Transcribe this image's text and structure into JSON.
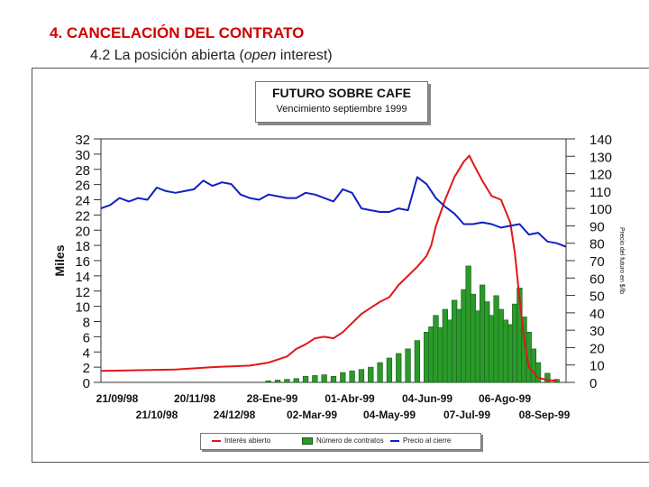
{
  "slide": {
    "title": "4. CANCELACIÓN DEL CONTRATO",
    "subtitle_prefix": "4.2 La posición abierta (",
    "subtitle_italic": "open",
    "subtitle_suffix": " interest)"
  },
  "colors": {
    "open_interest": "#e01818",
    "volume_fill": "#2a9a2a",
    "price": "#1020c0",
    "title_red": "#d00000"
  },
  "chart_data": {
    "type": "line",
    "title": "FUTURO SOBRE CAFE",
    "subtitle": "Vencimiento septiembre 1999",
    "ylabel_left": "Miles",
    "ylabel_right": "Precio del futuro en $/lb",
    "ylim_left": [
      0,
      32
    ],
    "ylim_right": [
      0,
      140
    ],
    "yticks_left": [
      "32",
      "30",
      "28",
      "26",
      "24",
      "22",
      "20",
      "18",
      "16",
      "14",
      "12",
      "10",
      "8",
      "6",
      "4",
      "2",
      "0"
    ],
    "yticks_right": [
      "140",
      "130",
      "120",
      "110",
      "100",
      "90",
      "80",
      "70",
      "60",
      "50",
      "40",
      "30",
      "20",
      "10",
      "0"
    ],
    "xticks_top": [
      "21/09/98",
      "20/11/98",
      "28-Ene-99",
      "01-Abr-99",
      "04-Jun-99",
      "06-Ago-99"
    ],
    "xticks_bottom": [
      "21/10/98",
      "24/12/98",
      "02-Mar-99",
      "04-May-99",
      "07-Jul-99",
      "08-Sep-99"
    ],
    "x_range": [
      0,
      50
    ],
    "legend": [
      "Interés abierto",
      "Número de contratos",
      "Precio al cierre"
    ],
    "series": [
      {
        "name": "Interés abierto",
        "axis": "left",
        "points": [
          [
            0,
            1.5
          ],
          [
            4,
            1.6
          ],
          [
            8,
            1.7
          ],
          [
            12,
            2.0
          ],
          [
            16,
            2.2
          ],
          [
            18,
            2.6
          ],
          [
            20,
            3.4
          ],
          [
            21,
            4.4
          ],
          [
            22,
            5.0
          ],
          [
            23,
            5.8
          ],
          [
            24,
            6.0
          ],
          [
            25,
            5.8
          ],
          [
            26,
            6.6
          ],
          [
            27,
            7.8
          ],
          [
            28,
            9.0
          ],
          [
            29,
            9.8
          ],
          [
            30,
            10.6
          ],
          [
            31,
            11.2
          ],
          [
            32,
            12.8
          ],
          [
            33,
            14.0
          ],
          [
            34,
            15.2
          ],
          [
            35,
            16.6
          ],
          [
            35.5,
            18.0
          ],
          [
            36,
            20.5
          ],
          [
            37,
            24.0
          ],
          [
            38,
            27.0
          ],
          [
            39,
            29.0
          ],
          [
            39.6,
            29.8
          ],
          [
            40,
            28.8
          ],
          [
            41,
            26.5
          ],
          [
            42,
            24.5
          ],
          [
            43,
            24.0
          ],
          [
            44,
            21.0
          ],
          [
            44.5,
            17.0
          ],
          [
            45,
            11.0
          ],
          [
            45.5,
            5.5
          ],
          [
            46,
            2.0
          ],
          [
            47,
            0.6
          ],
          [
            48,
            0.3
          ],
          [
            49,
            0.2
          ]
        ]
      },
      {
        "name": "Número de contratos",
        "axis": "left",
        "points": [
          [
            18,
            0.2
          ],
          [
            19,
            0.3
          ],
          [
            20,
            0.4
          ],
          [
            21,
            0.5
          ],
          [
            22,
            0.8
          ],
          [
            23,
            0.9
          ],
          [
            24,
            1.0
          ],
          [
            25,
            0.8
          ],
          [
            26,
            1.3
          ],
          [
            27,
            1.5
          ],
          [
            28,
            1.7
          ],
          [
            29,
            2.0
          ],
          [
            30,
            2.6
          ],
          [
            31,
            3.2
          ],
          [
            32,
            3.8
          ],
          [
            33,
            4.4
          ],
          [
            34,
            5.5
          ],
          [
            35,
            6.6
          ],
          [
            35.5,
            7.3
          ],
          [
            36,
            8.8
          ],
          [
            36.5,
            7.2
          ],
          [
            37,
            9.6
          ],
          [
            37.5,
            8.2
          ],
          [
            38,
            10.8
          ],
          [
            38.5,
            9.6
          ],
          [
            39,
            12.2
          ],
          [
            39.5,
            15.3
          ],
          [
            40,
            11.6
          ],
          [
            40.5,
            9.4
          ],
          [
            41,
            12.8
          ],
          [
            41.5,
            10.6
          ],
          [
            42,
            8.8
          ],
          [
            42.5,
            11.4
          ],
          [
            43,
            9.6
          ],
          [
            43.5,
            8.2
          ],
          [
            44,
            7.6
          ],
          [
            44.5,
            10.3
          ],
          [
            45,
            12.4
          ],
          [
            45.5,
            8.6
          ],
          [
            46,
            6.6
          ],
          [
            46.5,
            4.4
          ],
          [
            47,
            2.6
          ],
          [
            48,
            1.2
          ],
          [
            49,
            0.4
          ]
        ]
      },
      {
        "name": "Precio al cierre",
        "axis": "right",
        "points": [
          [
            0,
            100
          ],
          [
            1,
            102
          ],
          [
            2,
            106
          ],
          [
            3,
            104
          ],
          [
            4,
            106
          ],
          [
            5,
            105
          ],
          [
            6,
            112
          ],
          [
            7,
            110
          ],
          [
            8,
            109
          ],
          [
            9,
            110
          ],
          [
            10,
            111
          ],
          [
            11,
            116
          ],
          [
            12,
            113
          ],
          [
            13,
            115
          ],
          [
            14,
            114
          ],
          [
            15,
            108
          ],
          [
            16,
            106
          ],
          [
            17,
            105
          ],
          [
            18,
            108
          ],
          [
            19,
            107
          ],
          [
            20,
            106
          ],
          [
            21,
            106
          ],
          [
            22,
            109
          ],
          [
            23,
            108
          ],
          [
            24,
            106
          ],
          [
            25,
            104
          ],
          [
            26,
            111
          ],
          [
            27,
            109
          ],
          [
            28,
            100
          ],
          [
            29,
            99
          ],
          [
            30,
            98
          ],
          [
            31,
            98
          ],
          [
            32,
            100
          ],
          [
            33,
            99
          ],
          [
            34,
            118
          ],
          [
            35,
            114
          ],
          [
            36,
            106
          ],
          [
            37,
            101
          ],
          [
            38,
            97
          ],
          [
            39,
            91
          ],
          [
            40,
            91
          ],
          [
            41,
            92
          ],
          [
            42,
            91
          ],
          [
            43,
            89
          ],
          [
            44,
            90
          ],
          [
            45,
            91
          ],
          [
            46,
            85
          ],
          [
            47,
            86
          ],
          [
            48,
            81
          ],
          [
            49,
            80
          ],
          [
            50,
            78
          ]
        ]
      }
    ]
  }
}
